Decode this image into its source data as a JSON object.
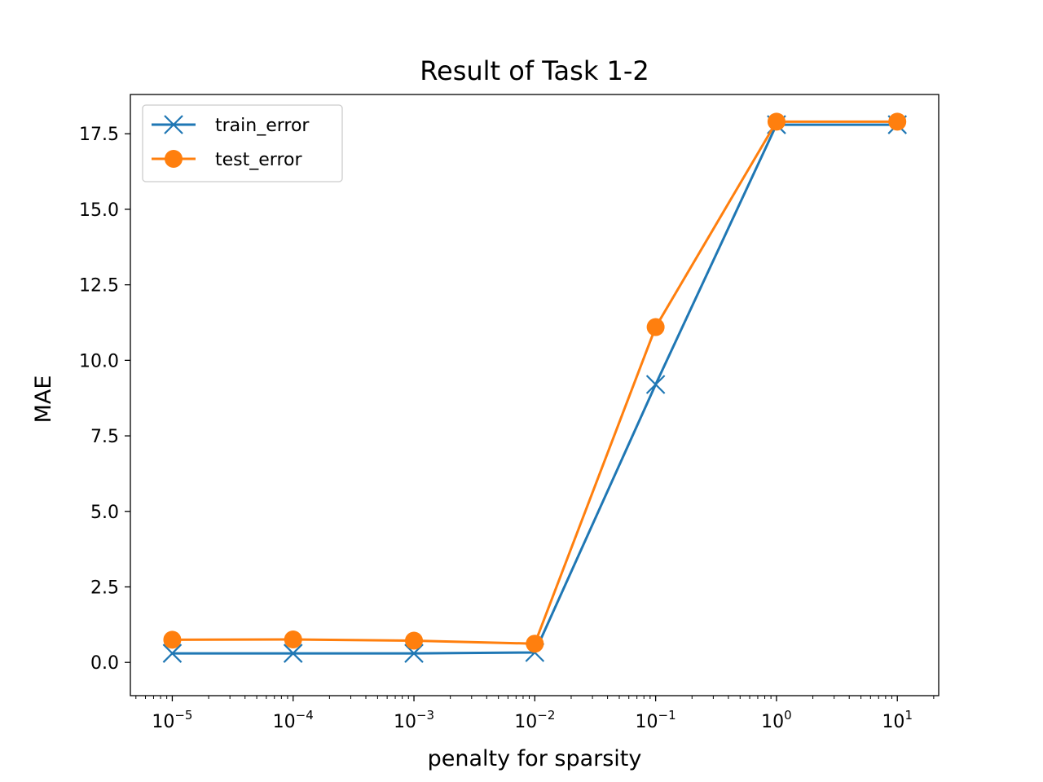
{
  "chart_data": {
    "type": "line",
    "title": "Result of Task 1-2",
    "xlabel": "penalty for sparsity",
    "ylabel": "MAE",
    "xscale": "log",
    "x": [
      1e-05,
      0.0001,
      0.001,
      0.01,
      0.1,
      1,
      10
    ],
    "xlim": [
      4.5e-06,
      22
    ],
    "ylim": [
      -1.1,
      18.8
    ],
    "x_ticks": [
      {
        "value": 1e-05,
        "base": "10",
        "exp": "−5"
      },
      {
        "value": 0.0001,
        "base": "10",
        "exp": "−4"
      },
      {
        "value": 0.001,
        "base": "10",
        "exp": "−3"
      },
      {
        "value": 0.01,
        "base": "10",
        "exp": "−2"
      },
      {
        "value": 0.1,
        "base": "10",
        "exp": "−1"
      },
      {
        "value": 1,
        "base": "10",
        "exp": "0"
      },
      {
        "value": 10,
        "base": "10",
        "exp": "1"
      }
    ],
    "y_ticks": [
      {
        "value": 0,
        "label": "0.0"
      },
      {
        "value": 2.5,
        "label": "2.5"
      },
      {
        "value": 5,
        "label": "5.0"
      },
      {
        "value": 7.5,
        "label": "7.5"
      },
      {
        "value": 10,
        "label": "10.0"
      },
      {
        "value": 12.5,
        "label": "12.5"
      },
      {
        "value": 15,
        "label": "15.0"
      },
      {
        "value": 17.5,
        "label": "17.5"
      }
    ],
    "grid": false,
    "legend_position": "top-left",
    "series": [
      {
        "name": "train_error",
        "marker": "x",
        "color": "#1f77b4",
        "values": [
          0.3,
          0.3,
          0.3,
          0.33,
          9.2,
          17.8,
          17.8
        ]
      },
      {
        "name": "test_error",
        "marker": "circle",
        "color": "#ff7f0e",
        "values": [
          0.75,
          0.76,
          0.72,
          0.62,
          11.1,
          17.9,
          17.9
        ]
      }
    ]
  }
}
